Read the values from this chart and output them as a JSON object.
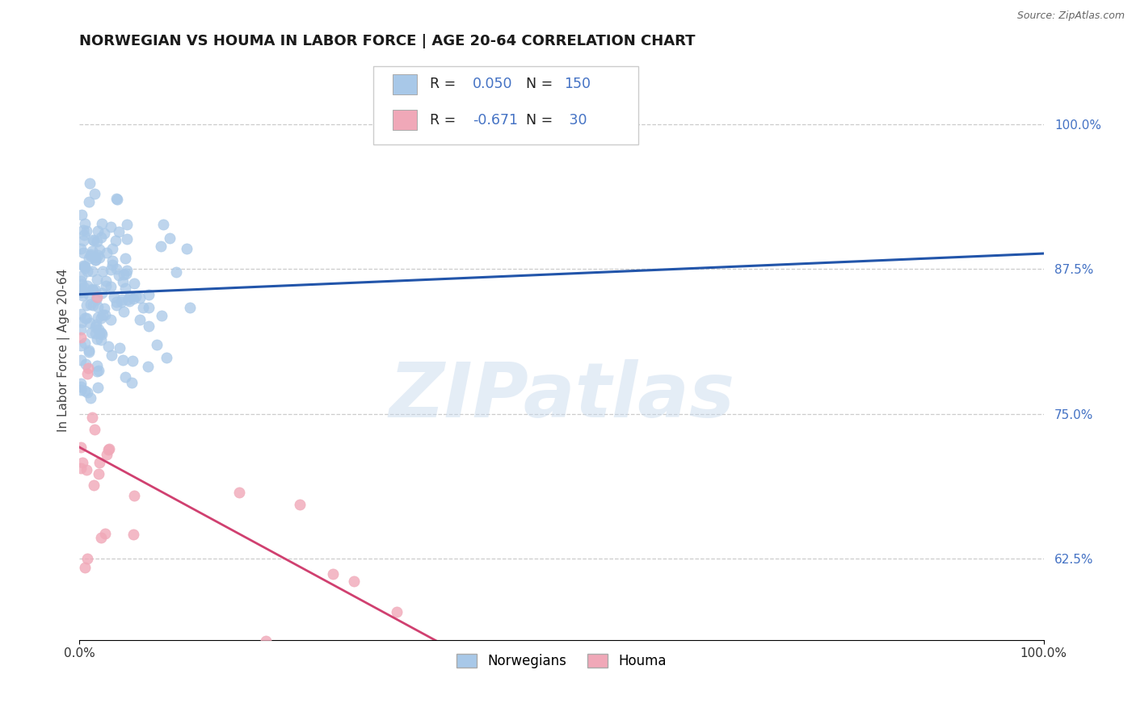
{
  "title": "NORWEGIAN VS HOUMA IN LABOR FORCE | AGE 20-64 CORRELATION CHART",
  "source_text": "Source: ZipAtlas.com",
  "ylabel": "In Labor Force | Age 20-64",
  "watermark": "ZIPatlas",
  "xlim": [
    0.0,
    1.0
  ],
  "ylim": [
    0.555,
    1.055
  ],
  "yticks": [
    0.625,
    0.75,
    0.875,
    1.0
  ],
  "ytick_labels": [
    "62.5%",
    "75.0%",
    "87.5%",
    "100.0%"
  ],
  "xticks": [
    0.0,
    1.0
  ],
  "xtick_labels": [
    "0.0%",
    "100.0%"
  ],
  "norwegian_R": 0.05,
  "norwegian_N": 150,
  "houma_R": -0.671,
  "houma_N": 30,
  "norwegian_color": "#a8c8e8",
  "houma_color": "#f0a8b8",
  "norwegian_line_color": "#2255aa",
  "houma_line_color": "#d04070",
  "legend_label_norwegian": "Norwegians",
  "legend_label_houma": "Houma",
  "title_color": "#1a1a1a",
  "title_fontsize": 13,
  "background_color": "#ffffff",
  "grid_color": "#cccccc",
  "marker_size": 90,
  "norw_seed": 7,
  "houma_seed": 3,
  "legend_R_color": "#4472C4",
  "legend_N_color": "#4472C4"
}
